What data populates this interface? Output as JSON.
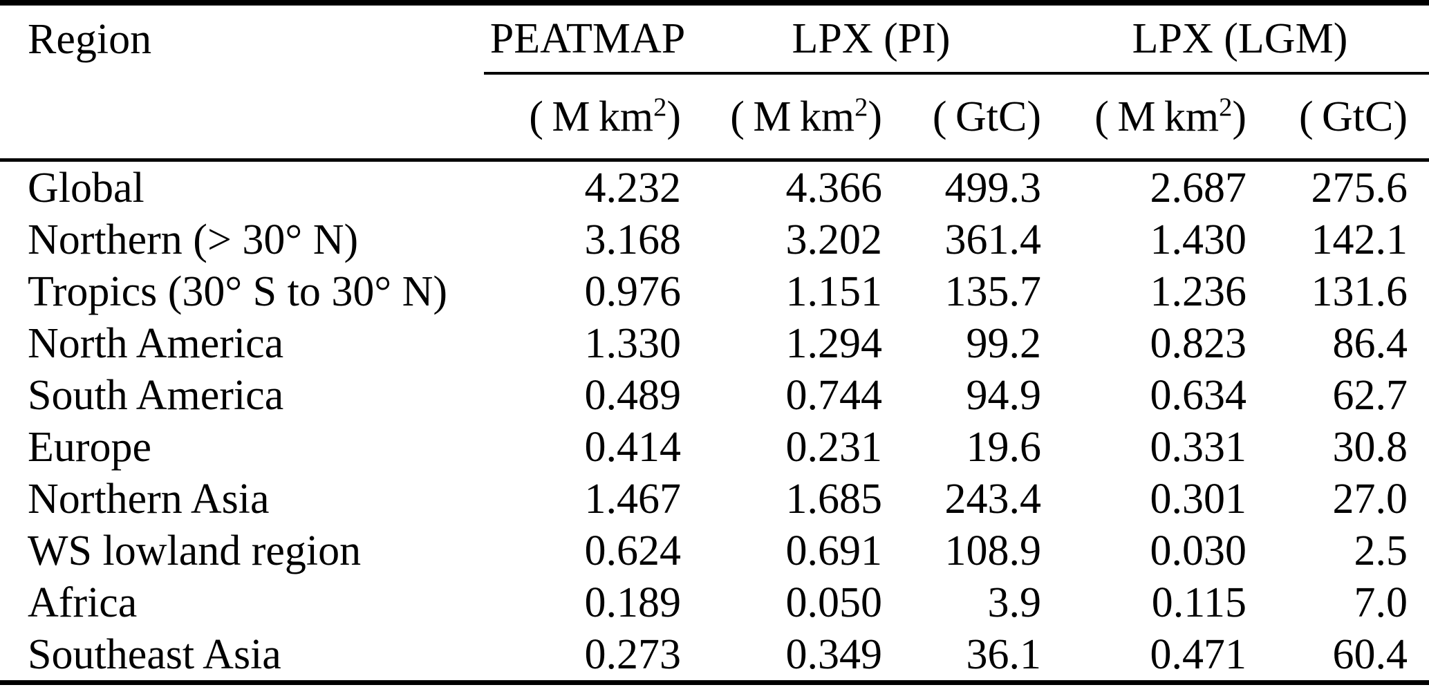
{
  "table": {
    "region_header": "Region",
    "group_headers": {
      "peatmap": "PEATMAP",
      "lpx_pi": "LPX (PI)",
      "lpx_lgm": "LPX (LGM)"
    },
    "unit_headers": [
      {
        "open": "( ",
        "base": "M km",
        "sup": "2",
        "close": ")"
      },
      {
        "open": "( ",
        "base": "M km",
        "sup": "2",
        "close": ")"
      },
      {
        "open": "( ",
        "base": "GtC",
        "sup": "",
        "close": ")"
      },
      {
        "open": "( ",
        "base": "M km",
        "sup": "2",
        "close": ")"
      },
      {
        "open": "( ",
        "base": "GtC",
        "sup": "",
        "close": ")"
      }
    ],
    "rows": [
      {
        "region": "Global",
        "values": [
          "4.232",
          "4.366",
          "499.3",
          "2.687",
          "275.6"
        ]
      },
      {
        "region": "Northern (> 30° N)",
        "values": [
          "3.168",
          "3.202",
          "361.4",
          "1.430",
          "142.1"
        ]
      },
      {
        "region": "Tropics (30° S to 30° N)",
        "values": [
          "0.976",
          "1.151",
          "135.7",
          "1.236",
          "131.6"
        ]
      },
      {
        "region": "North America",
        "values": [
          "1.330",
          "1.294",
          "99.2",
          "0.823",
          "86.4"
        ]
      },
      {
        "region": "South America",
        "values": [
          "0.489",
          "0.744",
          "94.9",
          "0.634",
          "62.7"
        ]
      },
      {
        "region": "Europe",
        "values": [
          "0.414",
          "0.231",
          "19.6",
          "0.331",
          "30.8"
        ]
      },
      {
        "region": "Northern Asia",
        "values": [
          "1.467",
          "1.685",
          "243.4",
          "0.301",
          "27.0"
        ]
      },
      {
        "region": "WS lowland region",
        "values": [
          "0.624",
          "0.691",
          "108.9",
          "0.030",
          "2.5"
        ]
      },
      {
        "region": "Africa",
        "values": [
          "0.189",
          "0.050",
          "3.9",
          "0.115",
          "7.0"
        ]
      },
      {
        "region": "Southeast Asia",
        "values": [
          "0.273",
          "0.349",
          "36.1",
          "0.471",
          "60.4"
        ]
      }
    ]
  },
  "chart_data": {
    "type": "table",
    "columns": [
      "Region",
      "PEATMAP (M km2)",
      "LPX (PI) (M km2)",
      "LPX (PI) (GtC)",
      "LPX (LGM) (M km2)",
      "LPX (LGM) (GtC)"
    ],
    "rows": [
      [
        "Global",
        4.232,
        4.366,
        499.3,
        2.687,
        275.6
      ],
      [
        "Northern (> 30° N)",
        3.168,
        3.202,
        361.4,
        1.43,
        142.1
      ],
      [
        "Tropics (30° S to 30° N)",
        0.976,
        1.151,
        135.7,
        1.236,
        131.6
      ],
      [
        "North America",
        1.33,
        1.294,
        99.2,
        0.823,
        86.4
      ],
      [
        "South America",
        0.489,
        0.744,
        94.9,
        0.634,
        62.7
      ],
      [
        "Europe",
        0.414,
        0.231,
        19.6,
        0.331,
        30.8
      ],
      [
        "Northern Asia",
        1.467,
        1.685,
        243.4,
        0.301,
        27.0
      ],
      [
        "WS lowland region",
        0.624,
        0.691,
        108.9,
        0.03,
        2.5
      ],
      [
        "Africa",
        0.189,
        0.05,
        3.9,
        0.115,
        7.0
      ],
      [
        "Southeast Asia",
        0.273,
        0.349,
        36.1,
        0.471,
        60.4
      ]
    ]
  }
}
